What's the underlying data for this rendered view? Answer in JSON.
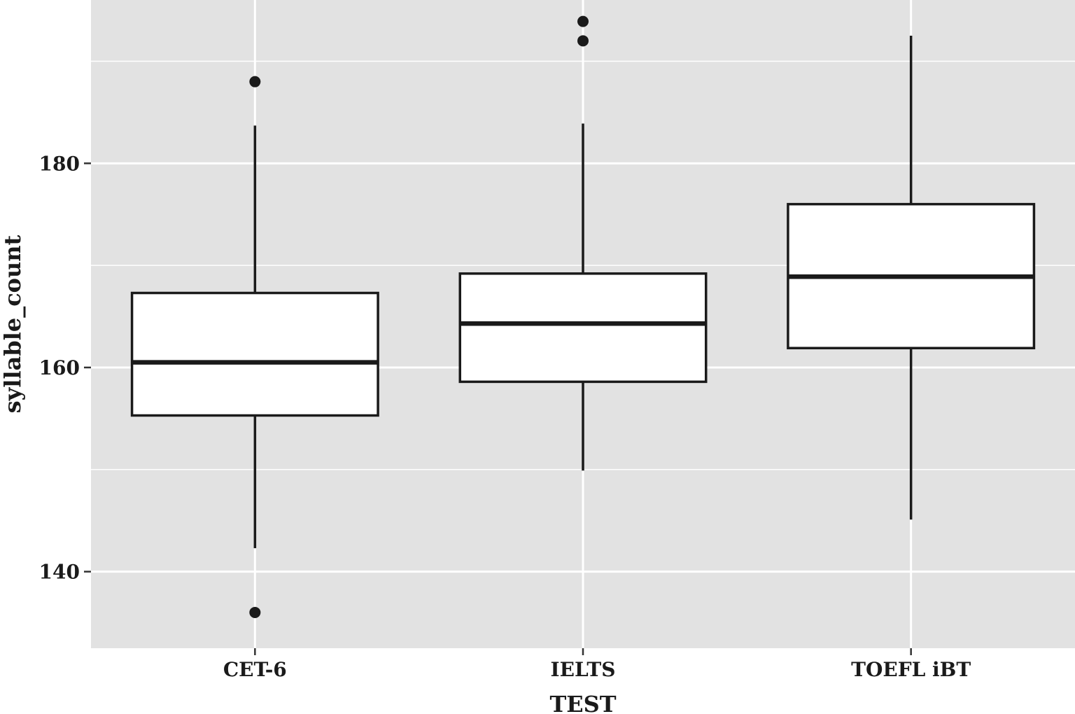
{
  "chart_data": {
    "type": "box",
    "title": "",
    "xlabel": "TEST",
    "ylabel": "syllable_count",
    "ylim": [
      132.5,
      196
    ],
    "yticks": [
      140,
      160,
      180
    ],
    "y_minor_gridlines": [
      150,
      170,
      190
    ],
    "grid": true,
    "background_color": "#e2e2e2",
    "gridline_color": "#ffffff",
    "box_fill_color": "#ffffff",
    "line_color": "#1a1a1a",
    "categories": [
      "CET-6",
      "IELTS",
      "TOEFL iBT"
    ],
    "boxes": [
      {
        "category": "CET-6",
        "whisker_low": 142.3,
        "q1": 155.3,
        "median": 160.5,
        "q3": 167.3,
        "whisker_high": 183.7,
        "outliers": [
          188,
          136
        ]
      },
      {
        "category": "IELTS",
        "whisker_low": 149.9,
        "q1": 158.6,
        "median": 164.3,
        "q3": 169.2,
        "whisker_high": 183.9,
        "outliers": [
          193.9,
          192
        ]
      },
      {
        "category": "TOEFL iBT",
        "whisker_low": 145.1,
        "q1": 161.9,
        "median": 168.9,
        "q3": 176.0,
        "whisker_high": 192.5,
        "outliers": []
      }
    ]
  }
}
